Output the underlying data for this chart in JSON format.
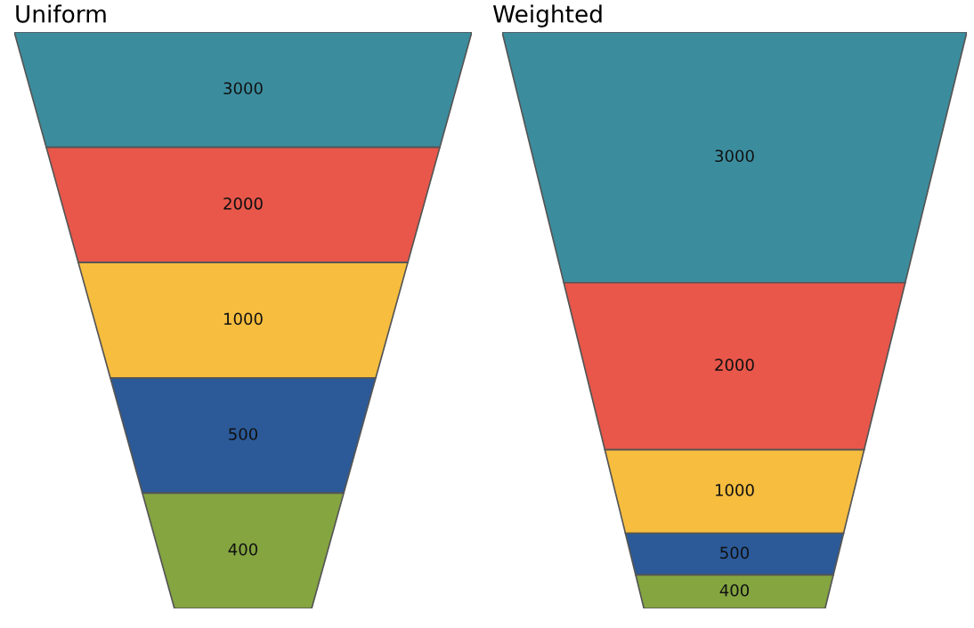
{
  "chart_data": [
    {
      "type": "other",
      "title": "Uniform",
      "values": [
        3000,
        2000,
        1000,
        500,
        400
      ],
      "colors": [
        "#3b8d9e",
        "#e8574a",
        "#f6bd3e",
        "#2c5a98",
        "#84a540"
      ],
      "data_labels": true
    },
    {
      "type": "other",
      "title": "Weighted",
      "values": [
        3000,
        2000,
        1000,
        500,
        400
      ],
      "colors": [
        "#3b8d9e",
        "#e8574a",
        "#f6bd3e",
        "#2c5a98",
        "#84a540"
      ],
      "data_labels": true
    }
  ]
}
